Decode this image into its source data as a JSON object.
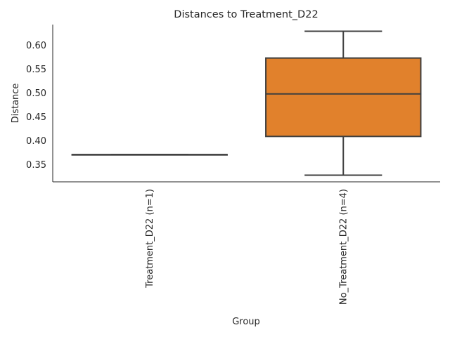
{
  "chart_data": {
    "type": "box",
    "title": "Distances to Treatment_D22",
    "xlabel": "Group",
    "ylabel": "Distance",
    "ylim": [
      0.314,
      0.643
    ],
    "yticks": [
      0.35,
      0.4,
      0.45,
      0.5,
      0.55,
      0.6
    ],
    "ytick_labels": [
      "0.35",
      "0.40",
      "0.45",
      "0.50",
      "0.55",
      "0.60"
    ],
    "categories": [
      "Treatment_D22 (n=1)",
      "No_Treatment_D22 (n=4)"
    ],
    "boxes": [
      {
        "category": "Treatment_D22 (n=1)",
        "whisker_low": 0.371,
        "q1": 0.371,
        "median": 0.371,
        "q3": 0.371,
        "whisker_high": 0.371,
        "color": "#3274a1"
      },
      {
        "category": "No_Treatment_D22 (n=4)",
        "whisker_low": 0.328,
        "q1": 0.409,
        "median": 0.498,
        "q3": 0.573,
        "whisker_high": 0.629,
        "color": "#e1812c"
      }
    ],
    "grid": false,
    "line_color": "#3f3f3f"
  }
}
